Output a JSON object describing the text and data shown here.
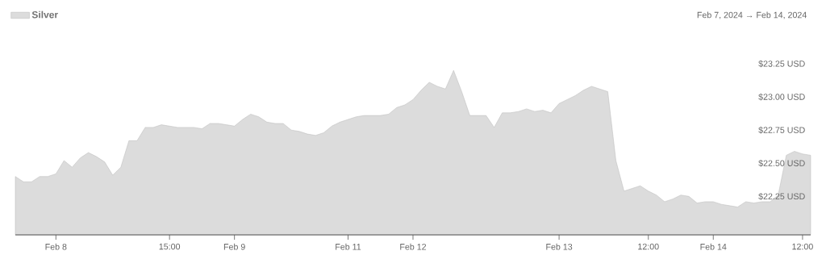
{
  "chart_data": {
    "type": "area",
    "subtitle": "Feb 7, 2024 → Feb 14, 2024",
    "legend": "top left",
    "grid": false,
    "categories": [
      null,
      null,
      null,
      null,
      null,
      "Feb 8",
      null,
      null,
      null,
      null,
      null,
      null,
      null,
      null,
      null,
      null,
      null,
      null,
      null,
      "15:00",
      null,
      null,
      null,
      null,
      null,
      null,
      null,
      "Feb 9",
      null,
      null,
      null,
      null,
      null,
      null,
      null,
      null,
      null,
      null,
      null,
      null,
      null,
      "Feb 11",
      null,
      null,
      null,
      null,
      null,
      null,
      null,
      "Feb 12",
      null,
      null,
      null,
      null,
      null,
      null,
      null,
      null,
      null,
      null,
      null,
      null,
      null,
      null,
      null,
      null,
      null,
      "Feb 13",
      null,
      null,
      null,
      null,
      null,
      null,
      null,
      null,
      null,
      null,
      "12:00",
      null,
      null,
      null,
      null,
      null,
      null,
      null,
      "Feb 14",
      null,
      null,
      null,
      null,
      null,
      null,
      null,
      null,
      null,
      null,
      "12:00",
      null
    ],
    "ylim": [
      21.96,
      23.25
    ],
    "yticks": [
      {
        "value": 22.25,
        "label": "$22.25 USD"
      },
      {
        "value": 22.5,
        "label": "$22.50 USD"
      },
      {
        "value": 22.75,
        "label": "$22.75 USD"
      },
      {
        "value": 23.0,
        "label": "$23.00 USD"
      },
      {
        "value": 23.25,
        "label": "$23.25 USD"
      }
    ],
    "series": [
      {
        "name": "Silver",
        "color": "#dcdcdc",
        "values": [
          22.4,
          22.36,
          22.36,
          22.4,
          22.4,
          22.42,
          22.52,
          22.47,
          22.54,
          22.58,
          22.55,
          22.51,
          22.41,
          22.47,
          22.67,
          22.67,
          22.77,
          22.77,
          22.79,
          22.78,
          22.77,
          22.77,
          22.77,
          22.76,
          22.8,
          22.8,
          22.79,
          22.78,
          22.83,
          22.87,
          22.85,
          22.81,
          22.8,
          22.8,
          22.75,
          22.74,
          22.72,
          22.71,
          22.73,
          22.78,
          22.81,
          22.83,
          22.85,
          22.86,
          22.86,
          22.86,
          22.87,
          22.92,
          22.94,
          22.98,
          23.05,
          23.11,
          23.08,
          23.06,
          23.2,
          23.04,
          22.86,
          22.86,
          22.86,
          22.77,
          22.88,
          22.88,
          22.89,
          22.91,
          22.89,
          22.9,
          22.88,
          22.95,
          22.98,
          23.01,
          23.05,
          23.08,
          23.06,
          23.04,
          22.52,
          22.29,
          22.31,
          22.33,
          22.29,
          22.26,
          22.21,
          22.23,
          22.26,
          22.25,
          22.2,
          22.21,
          22.21,
          22.19,
          22.18,
          22.17,
          22.21,
          22.2,
          22.21,
          22.21,
          22.26,
          22.56,
          22.59,
          22.57,
          22.56
        ]
      }
    ]
  }
}
